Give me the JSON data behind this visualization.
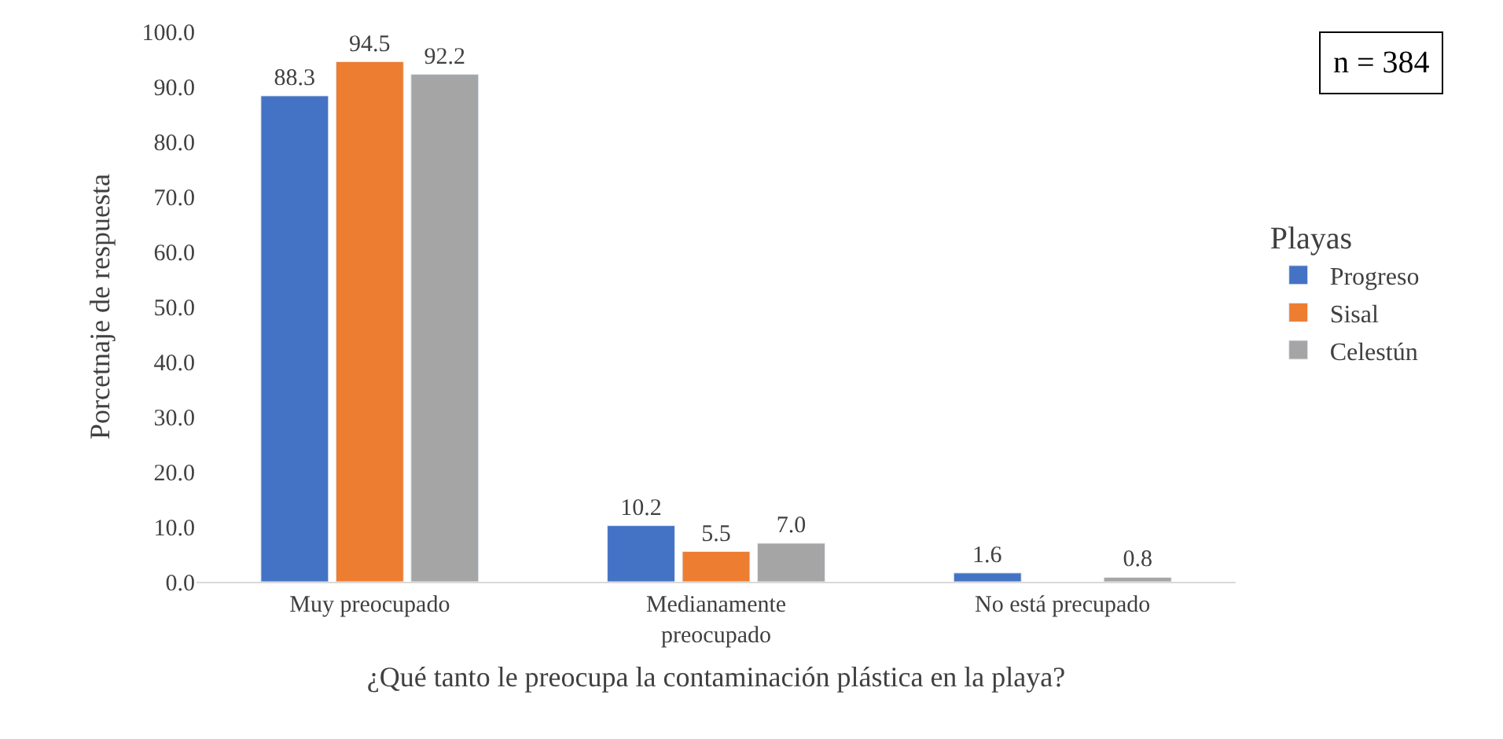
{
  "chart_data": {
    "type": "bar",
    "xlabel": "¿Qué tanto le preocupa la contaminación plástica en la playa?",
    "ylabel": "Porcetnaje de respuesta",
    "legend_title": "Playas",
    "annotations": [
      "n = 384"
    ],
    "categories": [
      "Muy preocupado",
      "Medianamente preocupado",
      "No está precupado"
    ],
    "series": [
      {
        "name": "Progreso",
        "color": "#4472c4",
        "values": [
          88.3,
          10.2,
          1.6
        ],
        "value_labels": [
          "88.3",
          "10.2",
          "1.6"
        ]
      },
      {
        "name": "Sisal",
        "color": "#ed7d31",
        "values": [
          94.5,
          5.5,
          null
        ],
        "value_labels": [
          "94.5",
          "5.5",
          null
        ]
      },
      {
        "name": "Celestún",
        "color": "#a5a5a5",
        "values": [
          92.2,
          7.0,
          0.8
        ],
        "value_labels": [
          "92.2",
          "7.0",
          "0.8"
        ]
      }
    ],
    "ylim": [
      0,
      100
    ],
    "yticks": [
      {
        "value": 0,
        "label": "0.0"
      },
      {
        "value": 10,
        "label": "10.0"
      },
      {
        "value": 20,
        "label": "20.0"
      },
      {
        "value": 30,
        "label": "30.0"
      },
      {
        "value": 40,
        "label": "40.0"
      },
      {
        "value": 50,
        "label": "50.0"
      },
      {
        "value": 60,
        "label": "60.0"
      },
      {
        "value": 70,
        "label": "70.0"
      },
      {
        "value": 80,
        "label": "80.0"
      },
      {
        "value": 90,
        "label": "90.0"
      },
      {
        "value": 100,
        "label": "100.0"
      }
    ],
    "grid": false,
    "legend": "right"
  }
}
